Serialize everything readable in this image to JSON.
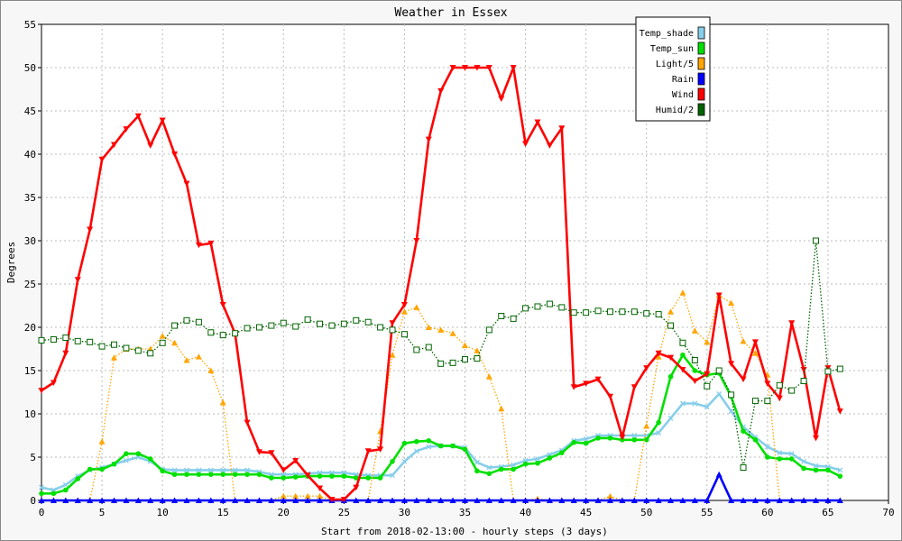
{
  "chart_data": {
    "type": "line",
    "title": "Weather in Essex",
    "xlabel": "Start from 2018-02-13:00 - hourly steps (3 days)",
    "ylabel": "Degrees",
    "xlim": [
      0,
      70
    ],
    "ylim": [
      0,
      55
    ],
    "xticks": [
      0,
      5,
      10,
      15,
      20,
      25,
      30,
      35,
      40,
      45,
      50,
      55,
      60,
      65,
      70
    ],
    "yticks": [
      0,
      5,
      10,
      15,
      20,
      25,
      30,
      35,
      40,
      45,
      50,
      55
    ],
    "grid": true,
    "legend_position": "top-right",
    "series": [
      {
        "name": "Temp_shade",
        "color": "#87ceeb",
        "style": "solid",
        "marker": "x",
        "values": [
          1.5,
          1.2,
          1.8,
          2.8,
          3.5,
          3.8,
          4.2,
          4.6,
          5.0,
          4.5,
          3.6,
          3.5,
          3.5,
          3.5,
          3.5,
          3.5,
          3.5,
          3.5,
          3.3,
          3.0,
          3.0,
          3.0,
          3.1,
          3.2,
          3.2,
          3.2,
          3.0,
          2.9,
          2.9,
          2.9,
          4.5,
          5.7,
          6.2,
          6.3,
          6.3,
          6.1,
          4.4,
          3.8,
          3.9,
          4.1,
          4.6,
          4.8,
          5.3,
          5.8,
          6.9,
          7.1,
          7.5,
          7.5,
          7.5,
          7.5,
          7.5,
          7.8,
          9.5,
          11.2,
          11.2,
          10.8,
          12.3,
          10.3,
          8.5,
          7.3,
          6.2,
          5.5,
          5.4,
          4.5,
          4.0,
          3.9,
          3.5
        ]
      },
      {
        "name": "Temp_sun",
        "color": "#00e000",
        "style": "solid",
        "marker": "circle",
        "values": [
          0.8,
          0.8,
          1.2,
          2.5,
          3.6,
          3.6,
          4.2,
          5.4,
          5.4,
          4.8,
          3.4,
          3.0,
          3.0,
          3.0,
          3.0,
          3.0,
          3.0,
          3.0,
          3.0,
          2.6,
          2.6,
          2.7,
          2.8,
          2.8,
          2.8,
          2.8,
          2.6,
          2.6,
          2.6,
          4.5,
          6.6,
          6.8,
          6.9,
          6.3,
          6.3,
          5.9,
          3.4,
          3.1,
          3.6,
          3.6,
          4.2,
          4.3,
          4.9,
          5.5,
          6.7,
          6.6,
          7.2,
          7.2,
          7.0,
          7.0,
          7.0,
          9.0,
          14.3,
          16.8,
          15.0,
          14.5,
          14.7,
          12.0,
          8.0,
          7.0,
          5.0,
          4.8,
          4.8,
          3.7,
          3.5,
          3.5,
          2.8
        ]
      },
      {
        "name": "Light/5",
        "color": "#ffa500",
        "style": "dotted",
        "marker": "triangle",
        "values": [
          0,
          0,
          0,
          0,
          0,
          6.8,
          16.5,
          17.5,
          17.5,
          17.5,
          19.0,
          18.2,
          16.2,
          16.6,
          15.0,
          11.3,
          0,
          0,
          0,
          0,
          0.5,
          0.5,
          0.5,
          0.5,
          0,
          0,
          0,
          0,
          8.0,
          16.8,
          21.8,
          22.3,
          20.0,
          19.7,
          19.3,
          17.9,
          17.3,
          14.3,
          10.6,
          0,
          0,
          0.2,
          0,
          0,
          0,
          0,
          0,
          0.5,
          0,
          0,
          8.6,
          16.6,
          21.8,
          24.0,
          19.6,
          18.3,
          23.7,
          22.8,
          18.4,
          17.0,
          14.5,
          0,
          0,
          0,
          0,
          0,
          0
        ]
      },
      {
        "name": "Rain",
        "color": "#0000ff",
        "style": "solid",
        "marker": "triangle",
        "values": [
          0,
          0,
          0,
          0,
          0,
          0,
          0,
          0,
          0,
          0,
          0,
          0,
          0,
          0,
          0,
          0,
          0,
          0,
          0,
          0,
          0,
          0,
          0,
          0,
          0,
          0,
          0,
          0,
          0,
          0,
          0,
          0,
          0,
          0,
          0,
          0,
          0,
          0,
          0,
          0,
          0,
          0,
          0,
          0,
          0,
          0,
          0,
          0,
          0,
          0,
          0,
          0,
          0,
          0,
          0,
          0,
          3.0,
          0,
          0,
          0,
          0,
          0,
          0,
          0,
          0,
          0,
          0
        ]
      },
      {
        "name": "Wind",
        "color": "#ff0000",
        "style": "solid",
        "marker": "triangle-down",
        "values": [
          12.7,
          13.6,
          17.0,
          25.5,
          31.3,
          39.4,
          41.1,
          42.9,
          44.4,
          41.0,
          43.9,
          40.0,
          36.6,
          29.5,
          29.7,
          22.6,
          19.3,
          9.0,
          5.6,
          5.5,
          3.5,
          4.6,
          2.9,
          1.4,
          0.1,
          0.1,
          1.5,
          5.7,
          5.9,
          20.5,
          22.6,
          30.0,
          41.7,
          47.3,
          50.0,
          50.0,
          50.0,
          50.0,
          46.4,
          50.0,
          41.2,
          43.7,
          41.0,
          43.0,
          13.1,
          13.5,
          14.0,
          12.0,
          7.3,
          13.1,
          15.3,
          17.0,
          16.5,
          15.1,
          13.8,
          14.6,
          23.7,
          15.8,
          14.0,
          18.3,
          13.5,
          11.8,
          20.5,
          15.1,
          7.2,
          15.3,
          10.3
        ]
      },
      {
        "name": "Humid/2",
        "color": "#006400",
        "style": "dotted",
        "marker": "square",
        "values": [
          18.5,
          18.6,
          18.8,
          18.4,
          18.3,
          17.8,
          18.0,
          17.6,
          17.3,
          17.0,
          18.2,
          20.2,
          20.8,
          20.6,
          19.4,
          19.1,
          19.3,
          19.9,
          20.0,
          20.2,
          20.5,
          20.1,
          20.9,
          20.4,
          20.2,
          20.4,
          20.8,
          20.6,
          20.0,
          19.7,
          19.2,
          17.4,
          17.7,
          15.8,
          15.9,
          16.3,
          16.4,
          19.7,
          21.3,
          21.0,
          22.2,
          22.4,
          22.7,
          22.3,
          21.7,
          21.7,
          21.9,
          21.8,
          21.8,
          21.8,
          21.6,
          21.5,
          20.2,
          18.2,
          16.2,
          13.2,
          15.0,
          12.2,
          3.8,
          11.5,
          11.5,
          13.3,
          12.7,
          13.8,
          30.0,
          14.9,
          15.2
        ]
      }
    ]
  }
}
